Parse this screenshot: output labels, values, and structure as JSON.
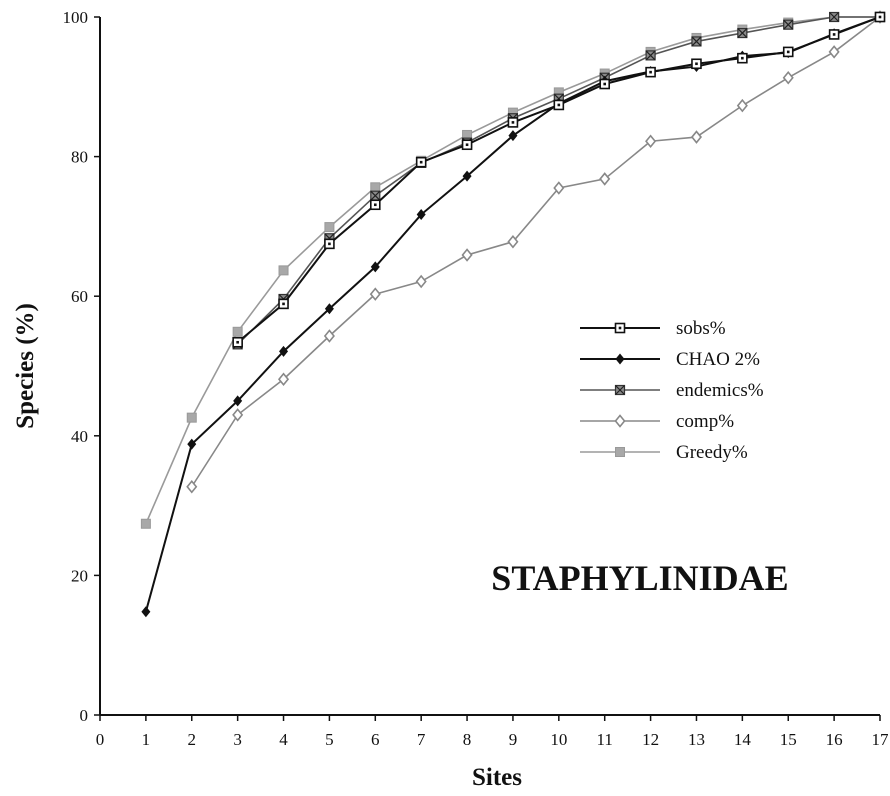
{
  "chart_data": {
    "type": "line",
    "title": "STAPHYLINIDAE",
    "xlabel": "Sites",
    "ylabel": "Species (%)",
    "xlim": [
      0,
      17
    ],
    "ylim": [
      0,
      100
    ],
    "x_ticks": [
      "0",
      "1",
      "2",
      "3",
      "4",
      "5",
      "6",
      "7",
      "8",
      "9",
      "10",
      "11",
      "12",
      "13",
      "14",
      "15",
      "16",
      "17"
    ],
    "y_ticks": [
      "0",
      "20",
      "40",
      "60",
      "80",
      "100"
    ],
    "grid": false,
    "legend_position": "right",
    "x": [
      1,
      2,
      3,
      4,
      5,
      6,
      7,
      8,
      9,
      10,
      11,
      12,
      13,
      14,
      15,
      16,
      17
    ],
    "series": [
      {
        "name": "sobs%",
        "marker": "open-square",
        "color": "#111111",
        "values": [
          null,
          null,
          53.4,
          58.9,
          67.5,
          73.1,
          79.2,
          81.7,
          84.9,
          87.4,
          90.4,
          92.1,
          93.3,
          94.1,
          95.0,
          97.5,
          100.0
        ]
      },
      {
        "name": "CHAO 2%",
        "marker": "filled-diamond",
        "color": "#111111",
        "values": [
          14.8,
          38.8,
          45.0,
          52.1,
          58.2,
          64.2,
          71.7,
          77.2,
          83.0,
          87.6,
          90.8,
          92.2,
          92.9,
          94.4,
          94.9,
          97.6,
          100.0
        ]
      },
      {
        "name": "endemics%",
        "marker": "x-square",
        "color": "#555555",
        "values": [
          null,
          null,
          53.1,
          59.6,
          68.3,
          74.4,
          79.1,
          82.0,
          85.5,
          88.3,
          91.3,
          94.5,
          96.5,
          97.7,
          98.9,
          100.0,
          100.0
        ]
      },
      {
        "name": "comp%",
        "marker": "open-diamond",
        "color": "#888888",
        "values": [
          null,
          32.7,
          43.0,
          48.1,
          54.3,
          60.3,
          62.1,
          65.9,
          67.8,
          75.5,
          76.8,
          82.2,
          82.8,
          87.3,
          91.3,
          95.0,
          100.0
        ]
      },
      {
        "name": "Greedy%",
        "marker": "shaded-square",
        "color": "#9a9a9a",
        "values": [
          27.4,
          42.6,
          54.9,
          63.7,
          69.9,
          75.6,
          79.4,
          83.1,
          86.3,
          89.2,
          91.9,
          95.0,
          97.0,
          98.2,
          99.2,
          100.0,
          100.0
        ]
      }
    ]
  }
}
